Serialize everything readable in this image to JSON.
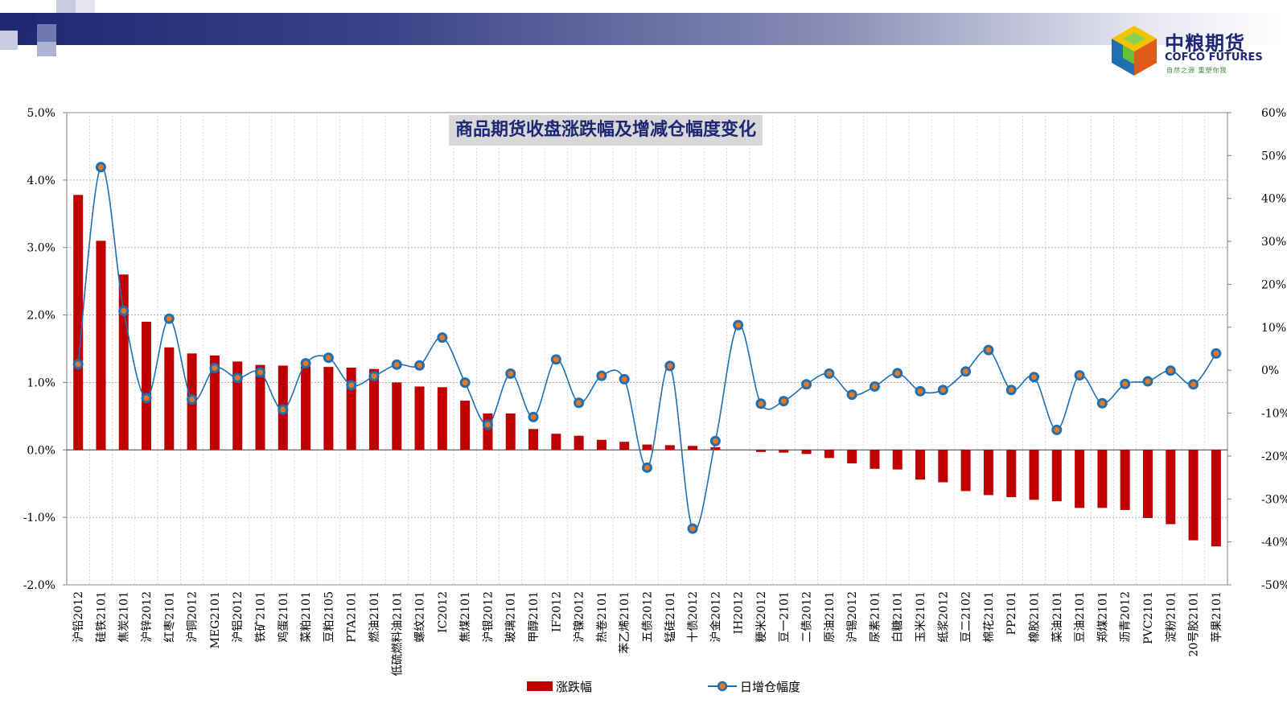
{
  "brand": {
    "name_cn": "中粮期货",
    "name_en": "COFCO FUTURES",
    "slogan": "自然之源 重塑你我",
    "colors": {
      "navy": "#1d2773",
      "bar": "#c00000",
      "line": "#1f6fb2",
      "marker_fill": "#e87722"
    }
  },
  "chart_data": {
    "type": "bar+line",
    "title": "商品期货收盘涨跌幅及增减仓幅度变化",
    "categories": [
      "沪铅2012",
      "硅铁2101",
      "焦炭2101",
      "沪锌2012",
      "红枣2101",
      "沪铜2012",
      "MEG2101",
      "沪铝2012",
      "铁矿2101",
      "鸡蛋2101",
      "菜粕2101",
      "豆粕2105",
      "PTA2101",
      "燃油2101",
      "低硫燃料油2101",
      "螺纹2101",
      "IC2012",
      "焦煤2101",
      "沪银2012",
      "玻璃2101",
      "甲醇2101",
      "IF2012",
      "沪镍2012",
      "热卷2101",
      "苯乙烯2101",
      "五债2012",
      "锰硅2101",
      "十债2012",
      "沪金2012",
      "IH2012",
      "粳米2012",
      "豆一2101",
      "二债2012",
      "原油2101",
      "沪锡2012",
      "尿素2101",
      "白糖2101",
      "玉米2101",
      "纸浆2012",
      "豆二2102",
      "棉花2101",
      "PP2101",
      "橡胶2101",
      "菜油2101",
      "豆油2101",
      "郑煤2101",
      "沥青2012",
      "PVC2101",
      "淀粉2101",
      "20号胶2101",
      "苹果2101"
    ],
    "series": [
      {
        "name": "涨跌幅",
        "type": "bar",
        "axis": "left",
        "color": "#c00000",
        "values": [
          3.78,
          3.1,
          2.6,
          1.9,
          1.52,
          1.43,
          1.4,
          1.31,
          1.26,
          1.25,
          1.24,
          1.23,
          1.22,
          1.2,
          1.0,
          0.94,
          0.93,
          0.73,
          0.54,
          0.54,
          0.31,
          0.24,
          0.21,
          0.15,
          0.12,
          0.08,
          0.07,
          0.06,
          0.04,
          0.0,
          -0.03,
          -0.04,
          -0.06,
          -0.12,
          -0.2,
          -0.28,
          -0.29,
          -0.44,
          -0.48,
          -0.61,
          -0.67,
          -0.7,
          -0.74,
          -0.76,
          -0.86,
          -0.86,
          -0.89,
          -1.01,
          -1.1,
          -1.34,
          -1.43
        ]
      },
      {
        "name": "日增仓幅度",
        "type": "line",
        "axis": "right",
        "color": "#1f6fb2",
        "values": [
          1.4,
          47.3,
          13.8,
          -6.5,
          12.0,
          -6.8,
          0.5,
          -1.8,
          -0.5,
          -9.2,
          1.6,
          2.9,
          -3.5,
          -1.4,
          1.3,
          1.1,
          7.6,
          -2.9,
          -12.7,
          -0.8,
          -10.9,
          2.5,
          -7.6,
          -1.3,
          -2.1,
          -22.7,
          1.0,
          -36.9,
          -16.5,
          10.5,
          -7.8,
          -7.2,
          -3.3,
          -0.8,
          -5.7,
          -3.8,
          -0.7,
          -4.9,
          -4.6,
          -0.3,
          4.7,
          -4.6,
          -1.6,
          -13.9,
          -1.2,
          -7.7,
          -3.2,
          -2.6,
          -0.1,
          -3.3,
          3.9
        ]
      }
    ],
    "y_left": {
      "min": -2.0,
      "max": 5.0,
      "ticks": [
        "5.0%",
        "4.0%",
        "3.0%",
        "2.0%",
        "1.0%",
        "0.0%",
        "-1.0%",
        "-2.0%"
      ]
    },
    "y_right": {
      "min": -50,
      "max": 60,
      "ticks": [
        "60%",
        "50%",
        "40%",
        "30%",
        "20%",
        "10%",
        "0%",
        "-10%",
        "-20%",
        "-30%",
        "-40%",
        "-50%"
      ]
    },
    "grid": true,
    "legend_position": "bottom"
  }
}
